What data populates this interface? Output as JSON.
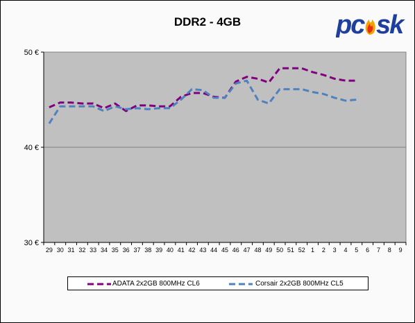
{
  "chart_data": {
    "type": "line",
    "title": "DDR2 - 4GB",
    "xlabel": "",
    "ylabel": "",
    "ylim": [
      30,
      50
    ],
    "yticks": [
      "30 €",
      "40 €",
      "50 €"
    ],
    "ytick_values": [
      30,
      40,
      50
    ],
    "grid": "horizontal major gridlines",
    "legend_position": "bottom",
    "plot_background": "#c0c0c0",
    "categories": [
      "29",
      "30",
      "31",
      "32",
      "33",
      "34",
      "35",
      "36",
      "37",
      "38",
      "39",
      "40",
      "41",
      "42",
      "43",
      "44",
      "45",
      "46",
      "47",
      "48",
      "49",
      "50",
      "51",
      "52",
      "1",
      "2",
      "3",
      "4",
      "5",
      "6",
      "7",
      "8",
      "9"
    ],
    "series": [
      {
        "name": "ADATA 2x2GB 800MHz CL6",
        "color": "#800080",
        "values": [
          44.2,
          44.7,
          44.7,
          44.6,
          44.6,
          44.1,
          44.6,
          43.8,
          44.4,
          44.4,
          44.3,
          44.3,
          45.3,
          45.7,
          45.7,
          45.3,
          45.2,
          46.9,
          47.4,
          47.2,
          46.8,
          48.3,
          48.3,
          48.3,
          47.9,
          47.6,
          47.2,
          47.0,
          47.0,
          null,
          null,
          null,
          null
        ]
      },
      {
        "name": "Corsair 2x2GB 800MHz CL5",
        "color": "#4f81bd",
        "values": [
          42.5,
          44.3,
          44.3,
          44.3,
          44.3,
          43.8,
          44.3,
          44.0,
          44.1,
          44.0,
          44.1,
          44.1,
          45.0,
          46.1,
          46.0,
          45.2,
          45.2,
          46.7,
          47.0,
          45.0,
          44.6,
          46.1,
          46.1,
          46.1,
          45.8,
          45.6,
          45.2,
          44.9,
          45.0,
          null,
          null,
          null,
          null
        ]
      }
    ]
  },
  "logo": {
    "text": "pcsk",
    "colors": {
      "main": "#1f3f9f",
      "flame": "#f5a300",
      "flame_inner": "#e8300c"
    }
  }
}
